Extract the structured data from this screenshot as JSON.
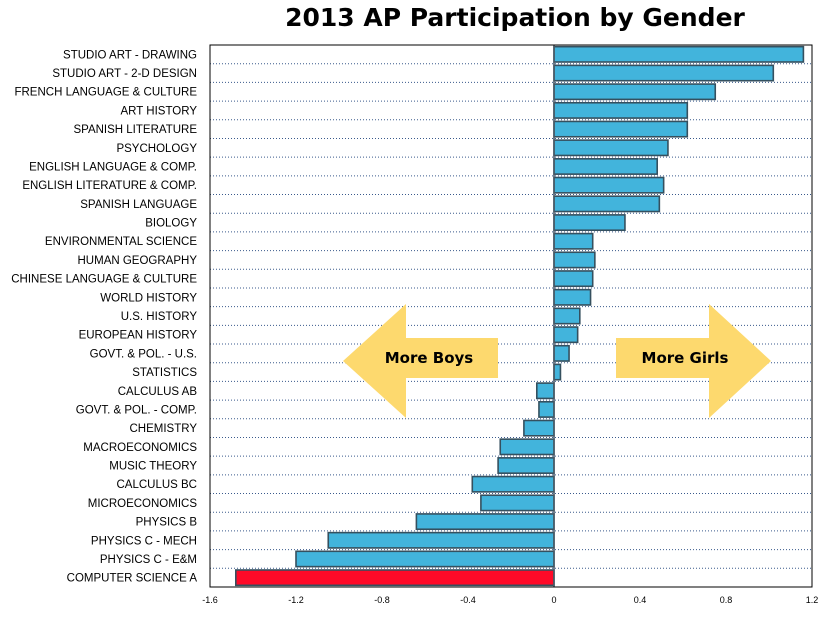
{
  "colors": {
    "bar": "#42b4dc",
    "bar_highlight": "#ff0a28",
    "bar_stroke": "#35505f",
    "arrow": "#fdd96e",
    "grid": "#3a5a8c"
  },
  "chart_data": {
    "type": "bar",
    "orientation": "horizontal",
    "title": "2013 AP Participation by Gender",
    "xlabel": "",
    "ylabel": "",
    "xlim": [
      -1.6,
      1.2
    ],
    "ticks": [
      "-1.6",
      "-1.2",
      "-0.8",
      "-0.4",
      "0",
      "0.4",
      "0.8",
      "1.2"
    ],
    "tick_values": [
      -1.6,
      -1.2,
      -0.8,
      -0.4,
      0,
      0.4,
      0.8,
      1.2
    ],
    "grid": "horizontal dotted",
    "categories": [
      "STUDIO ART - DRAWING",
      "STUDIO ART - 2-D DESIGN",
      "FRENCH LANGUAGE & CULTURE",
      "ART HISTORY",
      "SPANISH LITERATURE",
      "PSYCHOLOGY",
      "ENGLISH LANGUAGE & COMP.",
      "ENGLISH LITERATURE & COMP.",
      "SPANISH LANGUAGE",
      "BIOLOGY",
      "ENVIRONMENTAL SCIENCE",
      "HUMAN GEOGRAPHY",
      "CHINESE LANGUAGE & CULTURE",
      "WORLD HISTORY",
      "U.S. HISTORY",
      "EUROPEAN HISTORY",
      "GOVT. & POL. - U.S.",
      "STATISTICS",
      "CALCULUS AB",
      "GOVT. & POL. - COMP.",
      "CHEMISTRY",
      "MACROECONOMICS",
      "MUSIC THEORY",
      "CALCULUS BC",
      "MICROECONOMICS",
      "PHYSICS B",
      "PHYSICS C - MECH",
      "PHYSICS C - E&M",
      "COMPUTER SCIENCE A"
    ],
    "values": [
      1.16,
      1.02,
      0.75,
      0.62,
      0.62,
      0.53,
      0.48,
      0.51,
      0.49,
      0.33,
      0.18,
      0.19,
      0.18,
      0.17,
      0.12,
      0.11,
      0.07,
      0.03,
      -0.08,
      -0.07,
      -0.14,
      -0.25,
      -0.26,
      -0.38,
      -0.34,
      -0.64,
      -1.05,
      -1.2,
      -1.48
    ],
    "highlight_index": 28,
    "annotations": {
      "left": "More Boys",
      "right": "More Girls"
    }
  }
}
